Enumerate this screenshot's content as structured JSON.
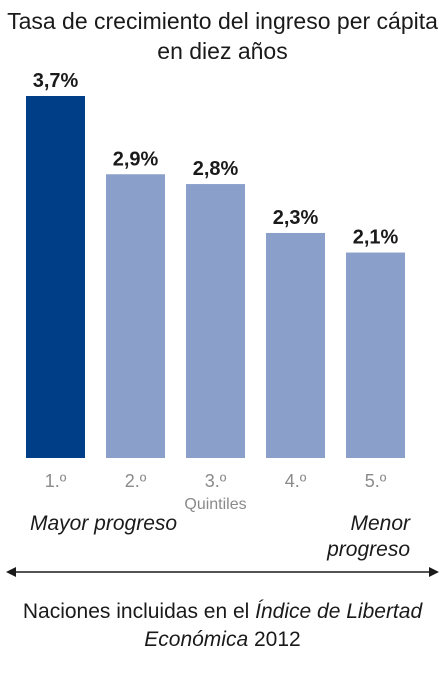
{
  "chart_data": {
    "type": "bar",
    "title": "Tasa de crecimiento del ingreso per cápita en diez años",
    "categories": [
      "1.º",
      "2.º",
      "3.º",
      "4.º",
      "5.º"
    ],
    "values": [
      3.7,
      2.9,
      2.8,
      2.3,
      2.1
    ],
    "value_labels": [
      "3,7%",
      "2,9%",
      "2,8%",
      "2,3%",
      "2,1%"
    ],
    "xlabel": "Quintiles",
    "ylabel": "",
    "ylim": [
      0,
      3.7
    ],
    "grid": false,
    "colors": {
      "highlight": "#003f87",
      "bar": "#8a9fc9"
    }
  },
  "annotations": {
    "left_end": "Mayor progreso",
    "right_end": "Menor progreso"
  },
  "caption": {
    "prefix": "Naciones incluidas en el ",
    "italic": "Índice de Libertad Económica",
    "suffix": " 2012"
  }
}
